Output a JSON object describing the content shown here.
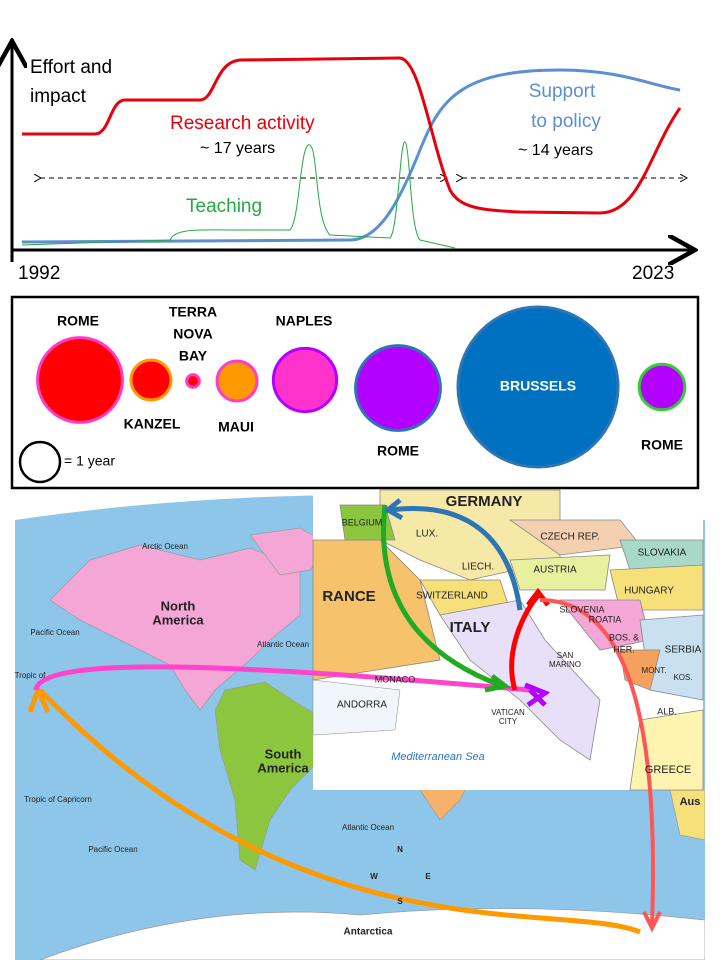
{
  "timeline": {
    "y_label_lines": [
      "Effort and",
      "impact"
    ],
    "start_label": "1992",
    "end_label": "2023",
    "research_label": "Research activity",
    "research_years": "~ 17 years",
    "teaching_label": "Teaching",
    "policy_label_lines": [
      "Support",
      "to policy"
    ],
    "policy_years": "~ 14 years"
  },
  "locations": {
    "legend_label": "= 1 year",
    "legend_years": 1,
    "items": [
      {
        "name_lines": [
          "ROME"
        ],
        "years": 4.5,
        "fill": "#ff0000",
        "stroke": "#ff3cc8"
      },
      {
        "name_lines": [
          "KANZEL"
        ],
        "years": 1,
        "fill": "#ff0000",
        "stroke": "#ff9900"
      },
      {
        "name_lines": [
          "TERRA",
          "NOVA",
          "BAY"
        ],
        "years": 0.1,
        "fill": "#ff0000",
        "stroke": "#ff3cc8"
      },
      {
        "name_lines": [
          "MAUI"
        ],
        "years": 1,
        "fill": "#ff9900",
        "stroke": "#ff3cc8"
      },
      {
        "name_lines": [
          "NAPLES"
        ],
        "years": 2.5,
        "fill": "#ff33cc",
        "stroke": "#b400ff"
      },
      {
        "name_lines": [
          "ROME"
        ],
        "years": 4.5,
        "fill": "#b400ff",
        "stroke": "#2e75b6"
      },
      {
        "name_lines": [
          "BRUSSELS"
        ],
        "years": 16,
        "fill": "#0070c0",
        "stroke": "#2e75b6"
      },
      {
        "name_lines": [
          "ROME"
        ],
        "years": 1.3,
        "fill": "#b400ff",
        "stroke": "#33cc33"
      }
    ]
  },
  "map": {
    "labels": [
      "Arctic Ocean",
      "Pacific Ocean",
      "North",
      "America",
      "Atlantic Ocean",
      "Tropic of",
      "South",
      "America",
      "Tropic of Capricorn",
      "Atlantic Ocean",
      "Pacific Ocean",
      "Antarctica",
      "N",
      "S",
      "W",
      "E",
      "Aus",
      "GERMANY",
      "BELGIUM",
      "LUX.",
      "CZECH REP.",
      "SLOVAKIA",
      "LIECH.",
      "AUSTRIA",
      "HUNGARY",
      "RANCE",
      "SWITZERLAND",
      "SLOVENIA",
      "ROATIA",
      "ITALY",
      "BOS. &",
      "HER.",
      "SERBIA",
      "SAN",
      "MARINO",
      "MONACO",
      "ANDORRA",
      "VATICAN",
      "CITY",
      "Mediterranean Sea",
      "GREECE",
      "MONT.",
      "KOS.",
      "ALB."
    ]
  }
}
